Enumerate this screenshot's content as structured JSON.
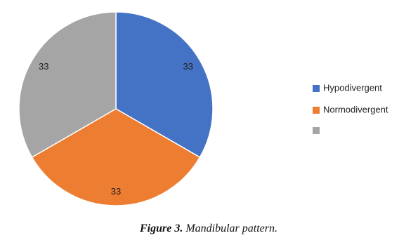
{
  "chart_data": {
    "type": "pie",
    "categories": [
      "Hypodivergent",
      "Normodivergent",
      null
    ],
    "values": [
      33,
      33,
      33
    ],
    "colors": [
      "#4472c4",
      "#ed7d31",
      "#a5a5a5"
    ],
    "legend": "right",
    "caption": {
      "label": "Figure 3.",
      "text": "Mandibular pattern."
    }
  }
}
